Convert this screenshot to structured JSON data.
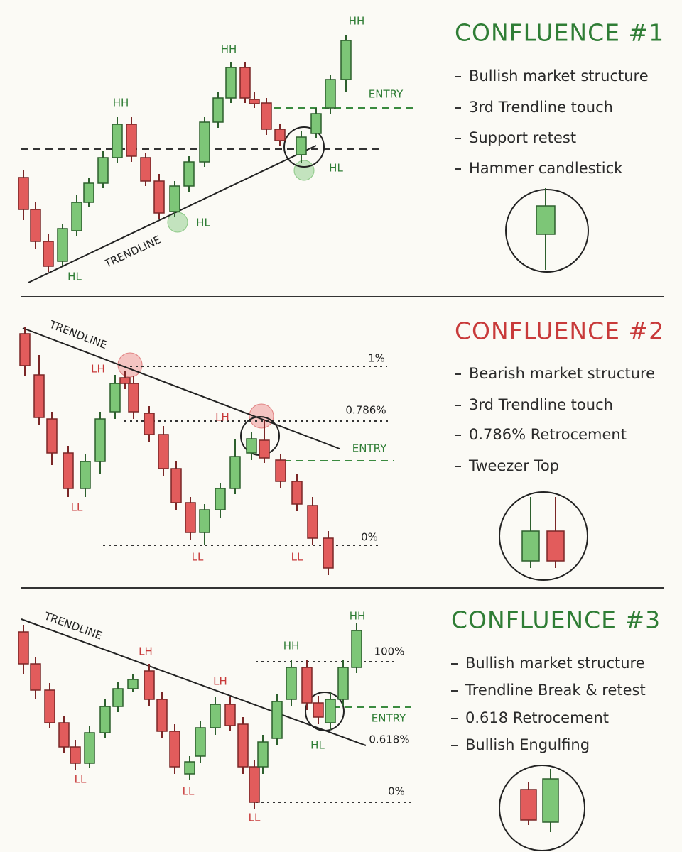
{
  "panels": [
    {
      "title": "CONFLUENCE #1",
      "points": [
        "Bullish market structure",
        "3rd Trendline touch",
        "Support retest",
        "Hammer candlestick"
      ],
      "chart_labels": [
        "HH",
        "HH",
        "HH",
        "HL",
        "HL",
        "HL",
        "TRENDLINE",
        "ENTRY"
      ]
    },
    {
      "title": "CONFLUENCE #2",
      "points": [
        "Bearish market structure",
        "3rd Trendline touch",
        "0.786% Retrocement",
        "Tweezer Top"
      ],
      "chart_labels": [
        "TRENDLINE",
        "LH",
        "LH",
        "LL",
        "LL",
        "LL",
        "1%",
        "0.786%",
        "ENTRY",
        "0%"
      ]
    },
    {
      "title": "CONFLUENCE #3",
      "points": [
        "Bullish market structure",
        "Trendline Break & retest",
        "0.618 Retrocement",
        "Bullish Engulfing"
      ],
      "chart_labels": [
        "TRENDLINE",
        "LH",
        "LH",
        "LL",
        "LL",
        "LL",
        "HH",
        "HH",
        "HL",
        "100%",
        "ENTRY",
        "0.618%",
        "0%"
      ]
    }
  ]
}
